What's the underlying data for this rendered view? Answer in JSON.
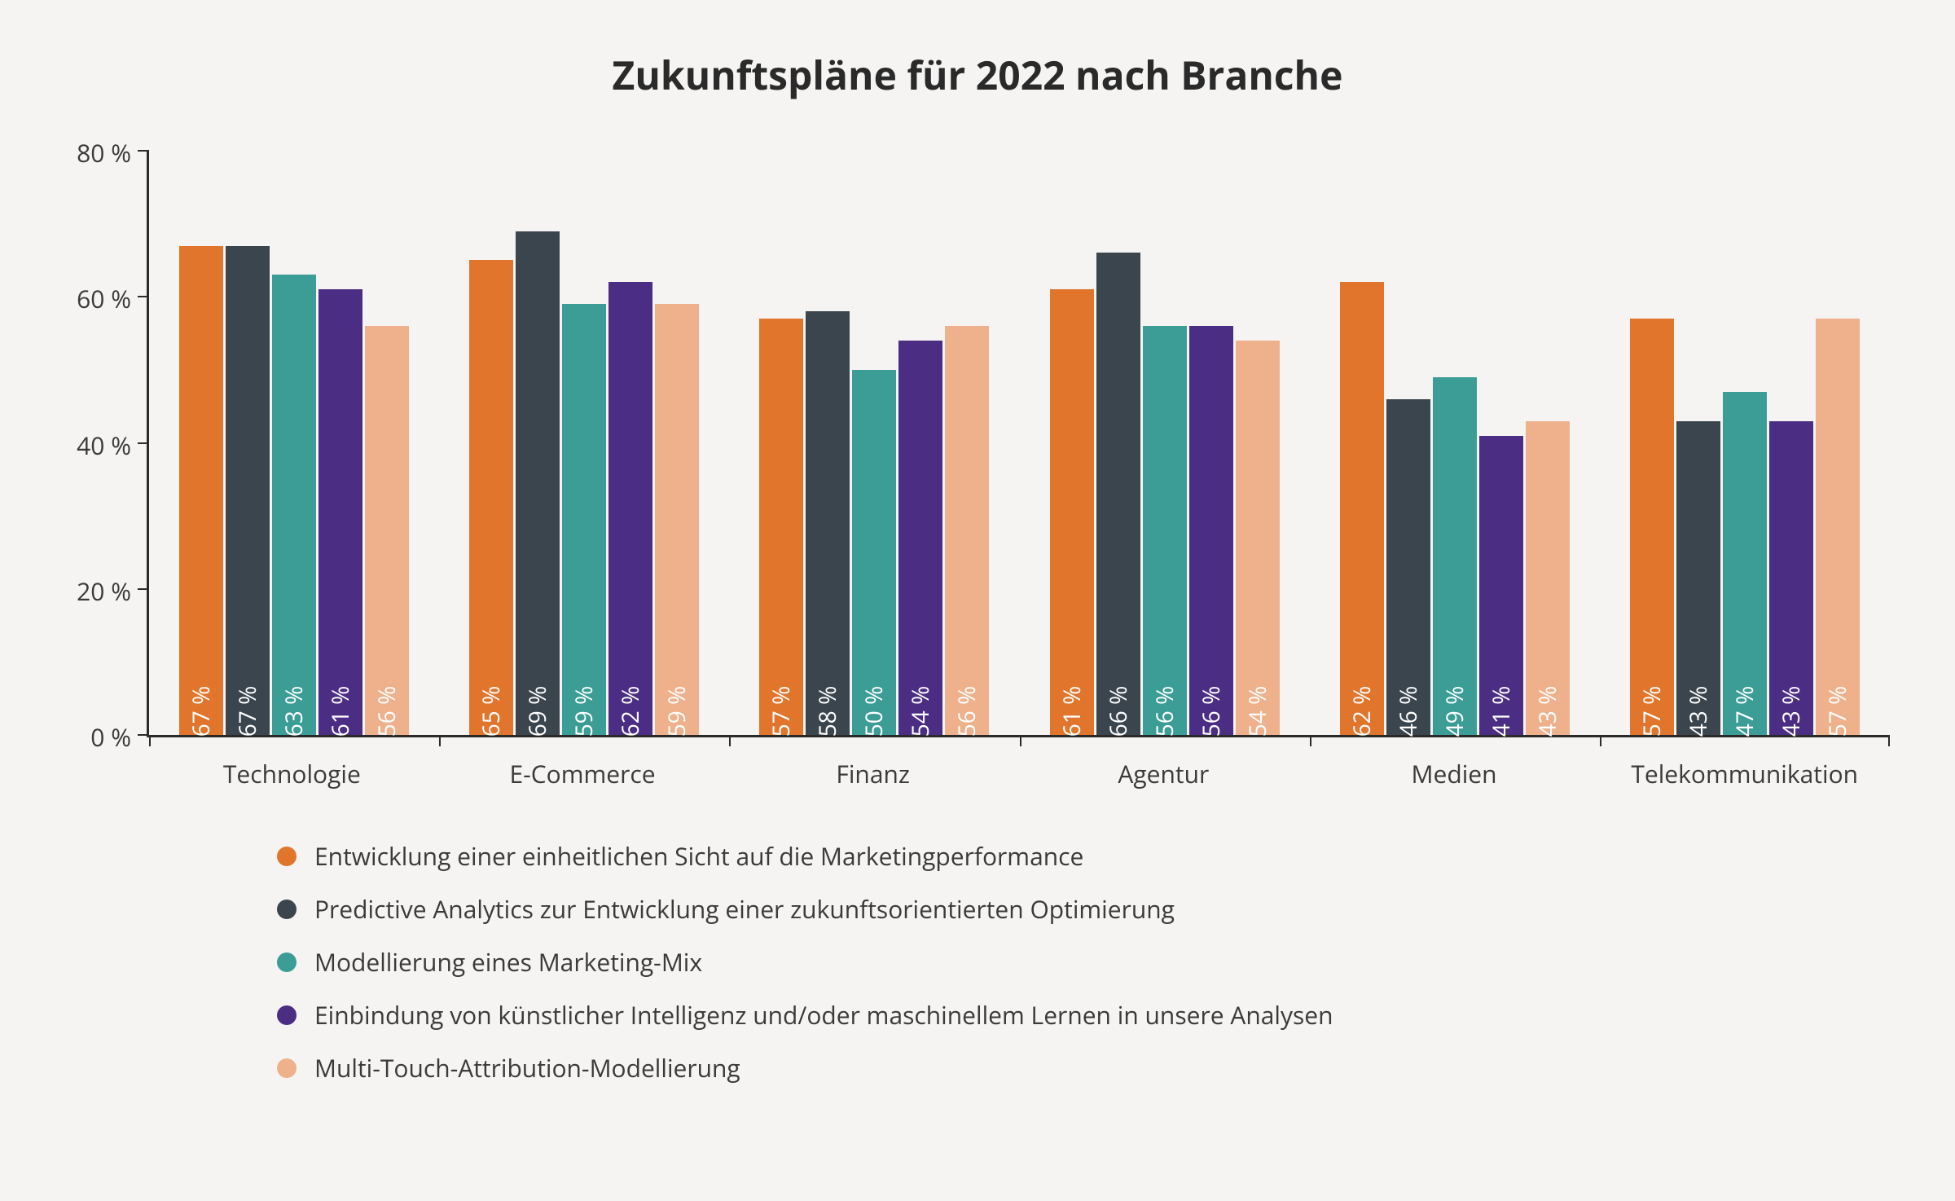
{
  "chart": {
    "type": "grouped-bar",
    "title": "Zukunftspläne für 2022 nach Branche",
    "title_fontsize": 48,
    "title_fontweight": 700,
    "title_color": "#2a2a2a",
    "background_color": "#f5f4f2",
    "axis_color": "#2a2a2a",
    "tick_label_color": "#3a3a3a",
    "tick_label_fontsize": 30,
    "bar_value_label_fontsize": 28,
    "bar_value_label_color": "#ffffff",
    "ylim": [
      0,
      80
    ],
    "ytick_step": 20,
    "ytick_suffix": " %",
    "value_suffix": " %",
    "categories": [
      "Technologie",
      "E-Commerce",
      "Finanz",
      "Agentur",
      "Medien",
      "Telekommunikation"
    ],
    "series": [
      {
        "label": "Entwicklung einer einheitlichen Sicht auf die Marketingperformance",
        "color": "#e2752c"
      },
      {
        "label": "Predictive Analytics zur Entwicklung einer zukunftsorientierten Optimierung",
        "color": "#3b454e"
      },
      {
        "label": "Modellierung eines Marketing-Mix",
        "color": "#3b9d95"
      },
      {
        "label": "Einbindung von künstlicher Intelligenz und/oder maschinellem Lernen in unsere Analysen",
        "color": "#4c2d84"
      },
      {
        "label": "Multi-Touch-Attribution-Modellierung",
        "color": "#eeb18c"
      }
    ],
    "data": [
      [
        67,
        67,
        63,
        61,
        56
      ],
      [
        65,
        69,
        59,
        62,
        59
      ],
      [
        57,
        58,
        50,
        54,
        56
      ],
      [
        61,
        66,
        56,
        56,
        54
      ],
      [
        62,
        46,
        49,
        41,
        43
      ],
      [
        57,
        43,
        47,
        43,
        57
      ]
    ],
    "legend_fontsize": 30,
    "legend_dot_size": 24,
    "xlabel_fontsize": 30
  }
}
